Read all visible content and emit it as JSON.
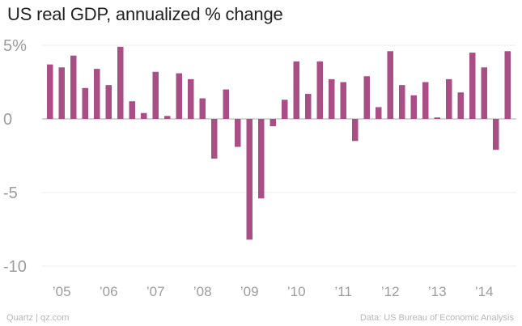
{
  "title": "US real GDP, annualized % change",
  "footer": {
    "source_left": "Quartz | qz.com",
    "source_right": "Data: US Bureau of Economic Analysis"
  },
  "chart_data": {
    "type": "bar",
    "title": "US real GDP, annualized % change",
    "xlabel": "",
    "ylabel": "",
    "ylim": [
      -10,
      5
    ],
    "y_ticks": [
      {
        "value": 5,
        "label": "5%"
      },
      {
        "value": 0,
        "label": "0"
      },
      {
        "value": -5,
        "label": "-5"
      },
      {
        "value": -10,
        "label": "-10"
      }
    ],
    "x_tick_labels": [
      "’05",
      "’06",
      "’07",
      "’08",
      "’09",
      "’10",
      "’11",
      "’12",
      "’13",
      "’14"
    ],
    "grid": true,
    "color": "#a94f86",
    "categories": [
      "2005 Q1",
      "2005 Q2",
      "2005 Q3",
      "2005 Q4",
      "2006 Q1",
      "2006 Q2",
      "2006 Q3",
      "2006 Q4",
      "2007 Q1",
      "2007 Q2",
      "2007 Q3",
      "2007 Q4",
      "2008 Q1",
      "2008 Q2",
      "2008 Q3",
      "2008 Q4",
      "2009 Q1",
      "2009 Q2",
      "2009 Q3",
      "2009 Q4",
      "2010 Q1",
      "2010 Q2",
      "2010 Q3",
      "2010 Q4",
      "2011 Q1",
      "2011 Q2",
      "2011 Q3",
      "2011 Q4",
      "2012 Q1",
      "2012 Q2",
      "2012 Q3",
      "2012 Q4",
      "2013 Q1",
      "2013 Q2",
      "2013 Q3",
      "2013 Q4",
      "2014 Q1",
      "2014 Q2",
      "2014 Q3",
      "2014 Q4"
    ],
    "values": [
      3.7,
      3.5,
      4.3,
      2.1,
      3.4,
      2.3,
      4.9,
      1.2,
      0.4,
      3.2,
      0.2,
      3.1,
      2.7,
      1.4,
      -2.7,
      2.0,
      -1.9,
      -8.2,
      -5.4,
      -0.5,
      1.3,
      3.9,
      1.7,
      3.9,
      2.7,
      2.5,
      -1.5,
      2.9,
      0.8,
      4.6,
      2.3,
      1.6,
      2.5,
      0.1,
      2.7,
      1.8,
      4.5,
      3.5,
      -2.1,
      4.6
    ]
  }
}
